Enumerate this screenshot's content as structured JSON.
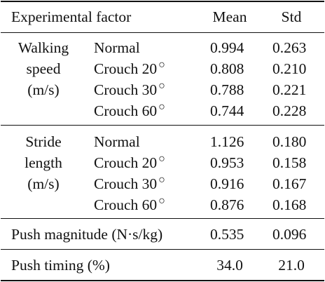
{
  "header": {
    "factor": "Experimental factor",
    "mean": "Mean",
    "std": "Std"
  },
  "groups": [
    {
      "label_lines": [
        "Walking",
        "speed",
        "(m/s)"
      ],
      "rows": [
        {
          "condition": "Normal",
          "mean": "0.994",
          "std": "0.263"
        },
        {
          "condition": "Crouch 20",
          "deg": "○",
          "mean": "0.808",
          "std": "0.210"
        },
        {
          "condition": "Crouch 30",
          "deg": "○",
          "mean": "0.788",
          "std": "0.221"
        },
        {
          "condition": "Crouch 60",
          "deg": "○",
          "mean": "0.744",
          "std": "0.228"
        }
      ]
    },
    {
      "label_lines": [
        "Stride",
        "length",
        "(m/s)"
      ],
      "rows": [
        {
          "condition": "Normal",
          "mean": "1.126",
          "std": "0.180"
        },
        {
          "condition": "Crouch 20",
          "deg": "○",
          "mean": "0.953",
          "std": "0.158"
        },
        {
          "condition": "Crouch 30",
          "deg": "○",
          "mean": "0.916",
          "std": "0.167"
        },
        {
          "condition": "Crouch 60",
          "deg": "○",
          "mean": "0.876",
          "std": "0.168"
        }
      ]
    }
  ],
  "single_rows": [
    {
      "label": "Push magnitude (N·s/kg)",
      "mean": "0.535",
      "std": "0.096"
    },
    {
      "label": "Push timing (%)",
      "mean": "34.0",
      "std": "21.0"
    }
  ]
}
